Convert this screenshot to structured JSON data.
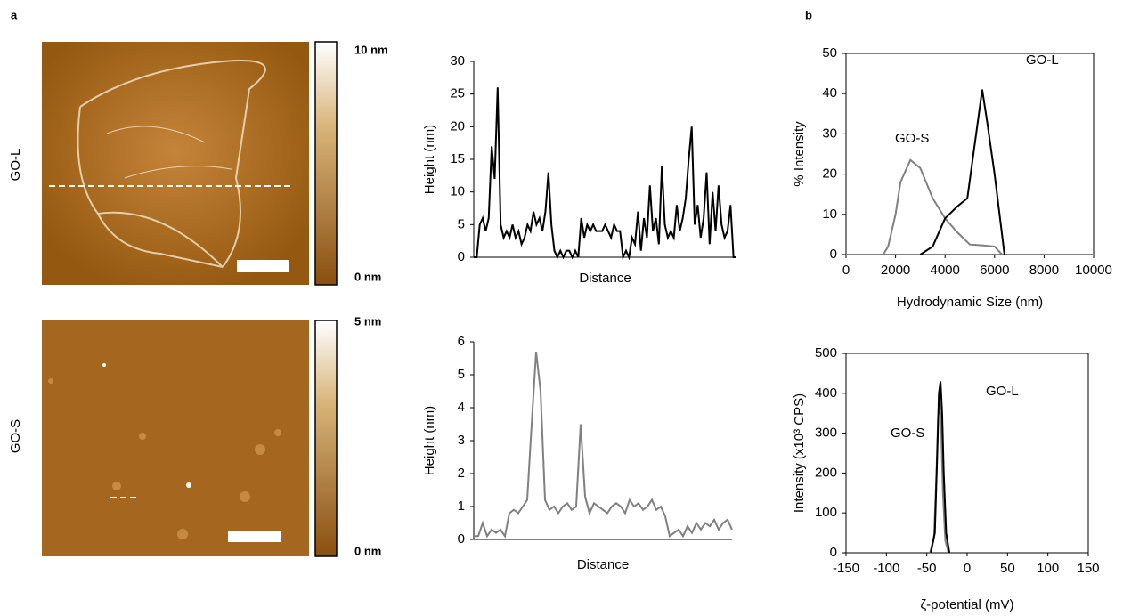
{
  "panel_labels": [
    "a",
    "b"
  ],
  "afm": [
    {
      "row_label": "GO-L",
      "colorbar_max": "10 nm",
      "colorbar_min": "0 nm"
    },
    {
      "row_label": "GO-S",
      "colorbar_max": "5 nm",
      "colorbar_min": "0 nm"
    }
  ],
  "chart_data": [
    {
      "type": "line",
      "x_label": "Distance",
      "y_label": "Height (nm)",
      "color": "#000000",
      "ylim": [
        0,
        30
      ],
      "yticks": [
        0,
        5,
        10,
        15,
        20,
        25,
        30
      ],
      "frame": false,
      "values": [
        0,
        0,
        5,
        6,
        4,
        6,
        17,
        12,
        26,
        5,
        3,
        4,
        3,
        5,
        3,
        4,
        2,
        3,
        5,
        4,
        7,
        5,
        6,
        4,
        7,
        13,
        5,
        1,
        0,
        1,
        0,
        1,
        1,
        0,
        1,
        0,
        6,
        3,
        5,
        4,
        5,
        4,
        4,
        4,
        5,
        4,
        3,
        5,
        4,
        4,
        0,
        1,
        0,
        3,
        2,
        7,
        1,
        6,
        3,
        11,
        4,
        6,
        2,
        14,
        5,
        3,
        4,
        3,
        8,
        4,
        6,
        9,
        15,
        20,
        5,
        8,
        3,
        6,
        13,
        2,
        10,
        4,
        11,
        5,
        3,
        4,
        8,
        0,
        0
      ]
    },
    {
      "type": "line",
      "x_label": "Distance",
      "y_label": "Height (nm)",
      "color": "#808080",
      "ylim": [
        0,
        6
      ],
      "yticks": [
        0,
        1,
        2,
        3,
        4,
        5,
        6
      ],
      "frame": false,
      "values": [
        0.1,
        0.1,
        0.5,
        0.1,
        0.3,
        0.2,
        0.3,
        0.1,
        0.8,
        0.9,
        0.8,
        1.0,
        1.2,
        3.5,
        5.7,
        4.5,
        1.2,
        0.9,
        1.0,
        0.8,
        1.0,
        1.1,
        0.9,
        1.0,
        3.5,
        1.3,
        0.8,
        1.1,
        1.0,
        0.9,
        0.8,
        1.0,
        1.1,
        1.0,
        0.8,
        1.2,
        1.0,
        1.1,
        0.9,
        1.0,
        1.2,
        0.9,
        1.0,
        0.7,
        0.1,
        0.2,
        0.3,
        0.1,
        0.4,
        0.2,
        0.5,
        0.3,
        0.5,
        0.4,
        0.6,
        0.3,
        0.5,
        0.6,
        0.3
      ]
    },
    {
      "type": "xyline",
      "x_label": "Hydrodynamic Size (nm)",
      "y_label": "% Intensity",
      "frame": true,
      "xlim": [
        0,
        10000
      ],
      "xticks": [
        0,
        2000,
        4000,
        6000,
        8000,
        10000
      ],
      "ylim": [
        0,
        50
      ],
      "yticks": [
        0,
        10,
        20,
        30,
        40,
        50
      ],
      "series": [
        {
          "name": "GO-S",
          "color": "#808080",
          "x": [
            0,
            1500,
            1700,
            2000,
            2200,
            2600,
            3000,
            3500,
            4000,
            4500,
            5000,
            5500,
            6000,
            6300,
            10000
          ],
          "values": [
            0,
            0,
            2,
            10,
            18,
            23.5,
            21.5,
            14,
            9,
            5.5,
            2.5,
            2.3,
            2,
            0,
            0
          ]
        },
        {
          "name": "GO-L",
          "color": "#000000",
          "x": [
            3000,
            3500,
            4000,
            4500,
            4900,
            5500,
            5700,
            6000,
            6400
          ],
          "values": [
            0,
            2,
            9,
            12,
            14,
            41,
            33,
            20,
            0
          ]
        }
      ]
    },
    {
      "type": "xyline",
      "x_label": "ζ-potential (mV)",
      "y_label": "Intensity (x10³ CPS)",
      "frame": true,
      "xlim": [
        -150,
        150
      ],
      "xticks": [
        -150,
        -100,
        -50,
        0,
        50,
        100,
        150
      ],
      "ylim": [
        0,
        500
      ],
      "yticks": [
        0,
        100,
        200,
        300,
        400,
        500
      ],
      "series": [
        {
          "name": "GO-S",
          "color": "#808080",
          "x": [
            -46,
            -41,
            -38,
            -36,
            -34,
            -32,
            -30,
            -27,
            -23
          ],
          "values": [
            0,
            40,
            200,
            340,
            380,
            300,
            150,
            30,
            0
          ]
        },
        {
          "name": "GO-L",
          "color": "#000000",
          "x": [
            -45,
            -40,
            -37,
            -35,
            -33,
            -31,
            -29,
            -26,
            -22
          ],
          "values": [
            0,
            50,
            250,
            400,
            430,
            350,
            200,
            50,
            0
          ]
        }
      ]
    }
  ]
}
